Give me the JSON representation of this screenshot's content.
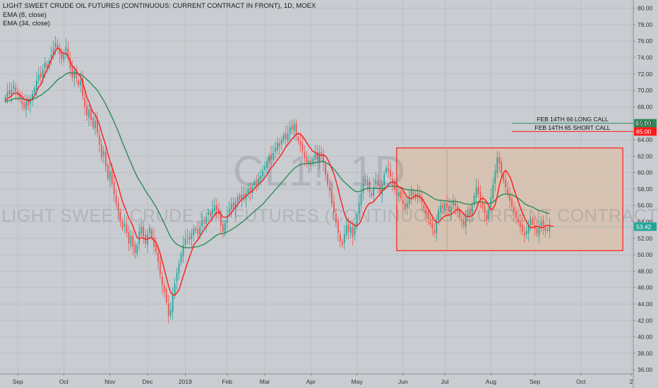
{
  "legend": {
    "title": "LIGHT SWEET CRUDE OIL FUTURES (CONTINUOUS: CURRENT CONTRACT IN FRONT), 1D, MOEX",
    "ema_fast": "EMA (8, close)",
    "ema_slow": "EMA (34, close)"
  },
  "watermark": {
    "symbol": "CL1!, 1D",
    "description": "LIGHT SWEET CRUDE OIL FUTURES (CONTINUOUS: CURRENT CONTRACT IN FRONT)"
  },
  "colors": {
    "background": "#c9ccd1",
    "grid": "#b7bbc1",
    "up_candle": "#26a69a",
    "down_candle": "#ef5350",
    "ema_fast": "#ff1a1a",
    "ema_slow": "#2e8b57",
    "box_fill": "#d9c0a8",
    "box_border": "#ff1a1a",
    "long_call_line": "#2e8b57",
    "short_call_line": "#ff1a1a",
    "last_price_tag": "#26a69a"
  },
  "chart_data": {
    "type": "candlestick",
    "title": "LIGHT SWEET CRUDE OIL FUTURES (CONTINUOUS: CURRENT CONTRACT IN FRONT), 1D, MOEX",
    "ylim": [
      35.5,
      81
    ],
    "y_ticks": [
      36,
      38,
      40,
      42,
      44,
      46,
      48,
      50,
      52,
      54,
      56,
      58,
      60,
      62,
      64,
      66,
      68,
      70,
      72,
      74,
      76,
      78,
      80
    ],
    "y_tick_labels": [
      "36.00",
      "38.00",
      "40.00",
      "42.00",
      "44.00",
      "46.00",
      "48.00",
      "50.00",
      "52.00",
      "54.00",
      "56.00",
      "58.00",
      "60.00",
      "62.00",
      "64.00",
      "66.00",
      "68.00",
      "70.00",
      "72.00",
      "74.00",
      "76.00",
      "78.00",
      "80.00"
    ],
    "x_ticks": [
      "Sep",
      "Oct",
      "Nov",
      "Dec",
      "2019",
      "Feb",
      "Mar",
      "Apr",
      "May",
      "Jun",
      "Jul",
      "Aug",
      "Sep",
      "Oct",
      "2"
    ],
    "x_tick_index": [
      6,
      28,
      50,
      68,
      86,
      106,
      124,
      146,
      168,
      190,
      210,
      232,
      253,
      275,
      299
    ],
    "x_range": [
      -2.5,
      300
    ],
    "closes": [
      69.2,
      69.8,
      69.5,
      70.1,
      70.6,
      69.9,
      69.4,
      68.9,
      68.4,
      67.9,
      68.7,
      68.1,
      68.9,
      69.6,
      70.3,
      71.2,
      71.9,
      71.6,
      72.5,
      73.4,
      72.8,
      73.6,
      74.3,
      75.1,
      75.8,
      75.2,
      74.4,
      73.8,
      74.6,
      75.3,
      73.9,
      72.7,
      71.6,
      72.4,
      71.5,
      70.6,
      71.2,
      69.3,
      68.0,
      66.9,
      67.7,
      66.4,
      65.5,
      66.3,
      64.8,
      63.4,
      61.9,
      62.6,
      60.8,
      59.3,
      60.2,
      58.6,
      57.4,
      56.2,
      55.4,
      54.1,
      53.2,
      53.8,
      52.6,
      51.4,
      52.3,
      51.0,
      50.2,
      51.2,
      52.8,
      53.4,
      52.2,
      51.4,
      52.5,
      53.3,
      52.1,
      51.0,
      50.4,
      49.1,
      47.6,
      46.3,
      45.5,
      44.2,
      42.5,
      43.3,
      45.2,
      46.5,
      47.8,
      48.9,
      50.1,
      51.2,
      52.0,
      52.3,
      51.8,
      52.6,
      53.2,
      52.9,
      52.5,
      53.3,
      54.2,
      53.8,
      54.6,
      55.2,
      54.8,
      55.6,
      56.0,
      55.4,
      54.9,
      53.6,
      52.8,
      53.9,
      54.8,
      55.6,
      56.2,
      55.8,
      56.4,
      57.0,
      56.7,
      57.3,
      56.9,
      57.5,
      58.0,
      57.6,
      58.3,
      58.9,
      58.5,
      59.1,
      59.6,
      60.2,
      60.8,
      61.4,
      62.0,
      61.6,
      62.4,
      63.0,
      63.6,
      63.2,
      64.0,
      64.6,
      64.1,
      64.8,
      65.5,
      65.2,
      65.9,
      64.6,
      63.8,
      63.3,
      62.6,
      61.8,
      61.2,
      61.5,
      60.8,
      61.7,
      62.3,
      61.6,
      62.5,
      62.0,
      61.2,
      59.7,
      58.5,
      57.8,
      56.2,
      55.1,
      53.9,
      52.7,
      51.6,
      51.2,
      52.5,
      53.6,
      52.8,
      53.4,
      52.2,
      53.5,
      54.9,
      56.3,
      57.5,
      58.7,
      59.2,
      58.8,
      57.7,
      57.2,
      58.3,
      59.1,
      58.4,
      57.6,
      58.5,
      59.8,
      60.6,
      60.2,
      59.5,
      58.7,
      57.9,
      57.2,
      57.6,
      56.9,
      56.2,
      55.5,
      56.3,
      57.1,
      57.8,
      57.4,
      56.8,
      57.5,
      56.9,
      56.3,
      55.6,
      55.0,
      54.3,
      53.7,
      53.2,
      52.6,
      54.0,
      55.2,
      56.0,
      55.6,
      56.3,
      55.7,
      55.2,
      55.9,
      56.6,
      55.9,
      55.2,
      54.5,
      54.1,
      53.6,
      54.6,
      55.2,
      54.8,
      56.0,
      57.2,
      58.2,
      57.4,
      56.6,
      55.8,
      55.1,
      54.3,
      55.6,
      57.0,
      58.5,
      60.2,
      61.9,
      61.1,
      59.9,
      59.0,
      58.2,
      57.4,
      56.6,
      55.9,
      55.2,
      54.5,
      53.9,
      53.4,
      52.8,
      52.4,
      52.9,
      53.6,
      54.2,
      53.7,
      53.1,
      52.6,
      53.3,
      54.0,
      53.5,
      52.9,
      53.1,
      53.4
    ],
    "ema8": [
      68.77,
      69.01,
      69.12,
      69.34,
      69.62,
      69.68,
      69.62,
      69.46,
      69.23,
      68.93,
      68.88,
      68.71,
      68.76,
      69.0,
      69.33,
      69.85,
      70.42,
      70.68,
      71.31,
      72.06,
      72.48,
      73.14,
      73.73,
      74.25,
      74.84,
      75.2,
      75.01,
      74.62,
      74.51,
      74.52,
      74.15,
      73.54,
      72.96,
      72.72,
      72.38,
      71.94,
      71.67,
      70.96,
      70.13,
      69.15,
      68.62,
      67.86,
      67.3,
      67.03,
      66.42,
      65.86,
      64.92,
      64.11,
      63.31,
      62.32,
      61.41,
      60.66,
      59.89,
      59.14,
      58.34,
      57.37,
      56.47,
      55.88,
      55.19,
      54.47,
      54.05,
      53.47,
      52.76,
      52.08,
      51.94,
      52.04,
      52.03,
      51.89,
      51.88,
      52.07,
      52.08,
      51.78,
      51.5,
      50.93,
      50.16,
      49.18,
      48.18,
      47.23,
      46.19,
      45.44,
      45.12,
      45.06,
      45.37,
      45.73,
      46.55,
      47.38,
      48.19,
      49.0,
      49.72,
      50.42,
      51.15,
      51.53,
      51.79,
      52.26,
      52.65,
      53.06,
      53.41,
      53.81,
      54.06,
      54.45,
      54.84,
      55.08,
      55.26,
      54.94,
      54.57,
      54.55,
      54.61,
      54.82,
      55.07,
      55.52,
      55.8,
      56.09,
      56.47,
      56.68,
      56.93,
      57.13,
      57.37,
      57.6,
      57.73,
      58.02,
      58.33,
      58.56,
      58.78,
      59.06,
      59.37,
      59.75,
      60.18,
      60.59,
      60.82,
      61.2,
      61.54,
      61.89,
      62.21,
      62.67,
      63.11,
      63.42,
      63.74,
      64.11,
      64.36,
      64.63,
      64.78,
      64.65,
      64.42,
      64.05,
      63.66,
      63.23,
      62.91,
      62.55,
      62.49,
      62.31,
      62.07,
      62.12,
      62.1,
      62.03,
      61.62,
      61.09,
      60.46,
      59.84,
      58.98,
      58.0,
      56.92,
      56.01,
      55.04,
      54.41,
      54.01,
      53.9,
      53.76,
      53.56,
      53.55,
      53.75,
      54.13,
      54.9,
      55.51,
      55.96,
      56.27,
      56.31,
      56.46,
      56.77,
      57.1,
      57.4,
      57.74,
      57.94,
      58.18,
      58.53,
      58.8,
      58.89,
      58.84,
      58.56,
      58.2,
      58.16,
      57.85,
      57.41,
      57.05,
      56.91,
      56.8,
      57.05,
      57.2,
      57.14,
      57.03,
      56.85,
      56.49,
      56.04,
      55.59,
      55.1,
      54.62,
      54.25,
      53.91,
      53.98,
      54.24,
      54.53,
      54.7,
      54.78,
      54.87,
      54.89,
      55.1,
      55.42,
      55.52,
      55.51,
      55.23,
      54.97,
      54.7,
      54.64,
      54.67,
      54.73,
      55.02,
      55.53,
      56.24,
      56.75,
      56.88,
      56.75,
      56.42,
      55.95,
      55.49,
      55.61,
      56.08,
      57.11,
      58.45,
      59.35,
      59.94,
      60.28,
      59.97,
      59.5,
      58.85,
      58.0,
      57.23,
      56.52,
      55.78,
      55.12,
      54.52,
      54.04,
      53.58,
      53.26,
      53.33,
      53.42,
      53.44,
      53.42,
      53.28,
      53.33,
      53.53,
      53.59,
      53.55,
      53.49,
      53.47
    ],
    "ema34": [
      68.63,
      68.7,
      68.76,
      68.85,
      68.96,
      69.01,
      69.03,
      69.02,
      68.98,
      68.92,
      68.91,
      68.87,
      68.87,
      68.91,
      68.99,
      69.12,
      69.28,
      69.41,
      69.59,
      69.81,
      70.0,
      70.21,
      70.46,
      70.73,
      71.03,
      71.28,
      71.47,
      71.61,
      71.8,
      72.0,
      72.11,
      72.15,
      72.12,
      72.13,
      72.09,
      72.0,
      71.95,
      71.79,
      71.57,
      71.31,
      71.1,
      70.83,
      70.53,
      70.3,
      69.99,
      69.61,
      69.17,
      68.79,
      68.31,
      67.76,
      67.29,
      66.75,
      66.18,
      65.58,
      64.97,
      64.33,
      63.66,
      63.06,
      62.43,
      61.79,
      61.22,
      60.64,
      60.04,
      59.49,
      59.05,
      58.67,
      58.24,
      57.78,
      57.39,
      57.05,
      56.67,
      56.26,
      55.83,
      55.37,
      54.86,
      54.33,
      53.8,
      53.24,
      52.67,
      52.18,
      51.8,
      51.49,
      51.28,
      51.13,
      50.98,
      50.9,
      50.87,
      50.87,
      50.83,
      50.86,
      50.91,
      50.96,
      50.99,
      51.07,
      51.18,
      51.28,
      51.43,
      51.62,
      51.79,
      51.98,
      52.21,
      52.38,
      52.51,
      52.56,
      52.57,
      52.63,
      52.78,
      52.91,
      53.04,
      53.21,
      53.38,
      53.56,
      53.74,
      53.94,
      54.14,
      54.36,
      54.6,
      54.82,
      55.05,
      55.29,
      55.5,
      55.71,
      55.94,
      56.16,
      56.43,
      56.74,
      57.05,
      57.32,
      57.6,
      57.91,
      58.2,
      58.49,
      58.78,
      59.08,
      59.36,
      59.66,
      59.98,
      60.24,
      60.49,
      60.69,
      60.85,
      60.98,
      61.05,
      61.07,
      61.09,
      61.13,
      61.11,
      61.14,
      61.21,
      61.24,
      61.31,
      61.34,
      61.33,
      61.24,
      61.08,
      60.91,
      60.7,
      60.43,
      60.12,
      59.78,
      59.44,
      59.1,
      58.84,
      58.62,
      58.38,
      58.16,
      57.92,
      57.75,
      57.68,
      57.68,
      57.78,
      57.9,
      58.01,
      58.12,
      58.11,
      58.06,
      58.07,
      58.09,
      58.07,
      58.04,
      58.05,
      58.1,
      58.22,
      58.3,
      58.33,
      58.35,
      58.34,
      58.3,
      58.26,
      58.19,
      58.09,
      57.97,
      57.91,
      57.89,
      57.9,
      57.86,
      57.8,
      57.8,
      57.76,
      57.69,
      57.58,
      57.45,
      57.3,
      57.14,
      56.98,
      56.79,
      56.7,
      56.64,
      56.63,
      56.6,
      56.58,
      56.54,
      56.49,
      56.47,
      56.5,
      56.5,
      56.47,
      56.41,
      56.33,
      56.23,
      56.19,
      56.16,
      56.12,
      56.14,
      56.24,
      56.37,
      56.43,
      56.44,
      56.41,
      56.35,
      56.26,
      56.23,
      56.27,
      56.4,
      56.63,
      56.91,
      57.12,
      57.27,
      57.36,
      57.4,
      57.39,
      57.36,
      57.28,
      57.17,
      57.04,
      56.87,
      56.69,
      56.47,
      56.24,
      56.07,
      55.96,
      55.88,
      55.78,
      55.64,
      55.48,
      55.38,
      55.33,
      55.25,
      55.14,
      55.06,
      54.99
    ],
    "box": {
      "start_index": 187,
      "end_index": 295,
      "top": 63,
      "bottom": 50.5
    },
    "vertical_marker_index": 211,
    "horizontal_lines": [
      {
        "label": "FEB 14TH 66 LONG CALL",
        "price": 66.0,
        "price_label": "66.00",
        "start_index": 242
      },
      {
        "label": "FEB 14TH 65 SHORT CALL",
        "price": 65.0,
        "price_label": "65.00",
        "start_index": 242
      }
    ],
    "last_price": {
      "value": 53.42,
      "label": "53.42"
    }
  }
}
